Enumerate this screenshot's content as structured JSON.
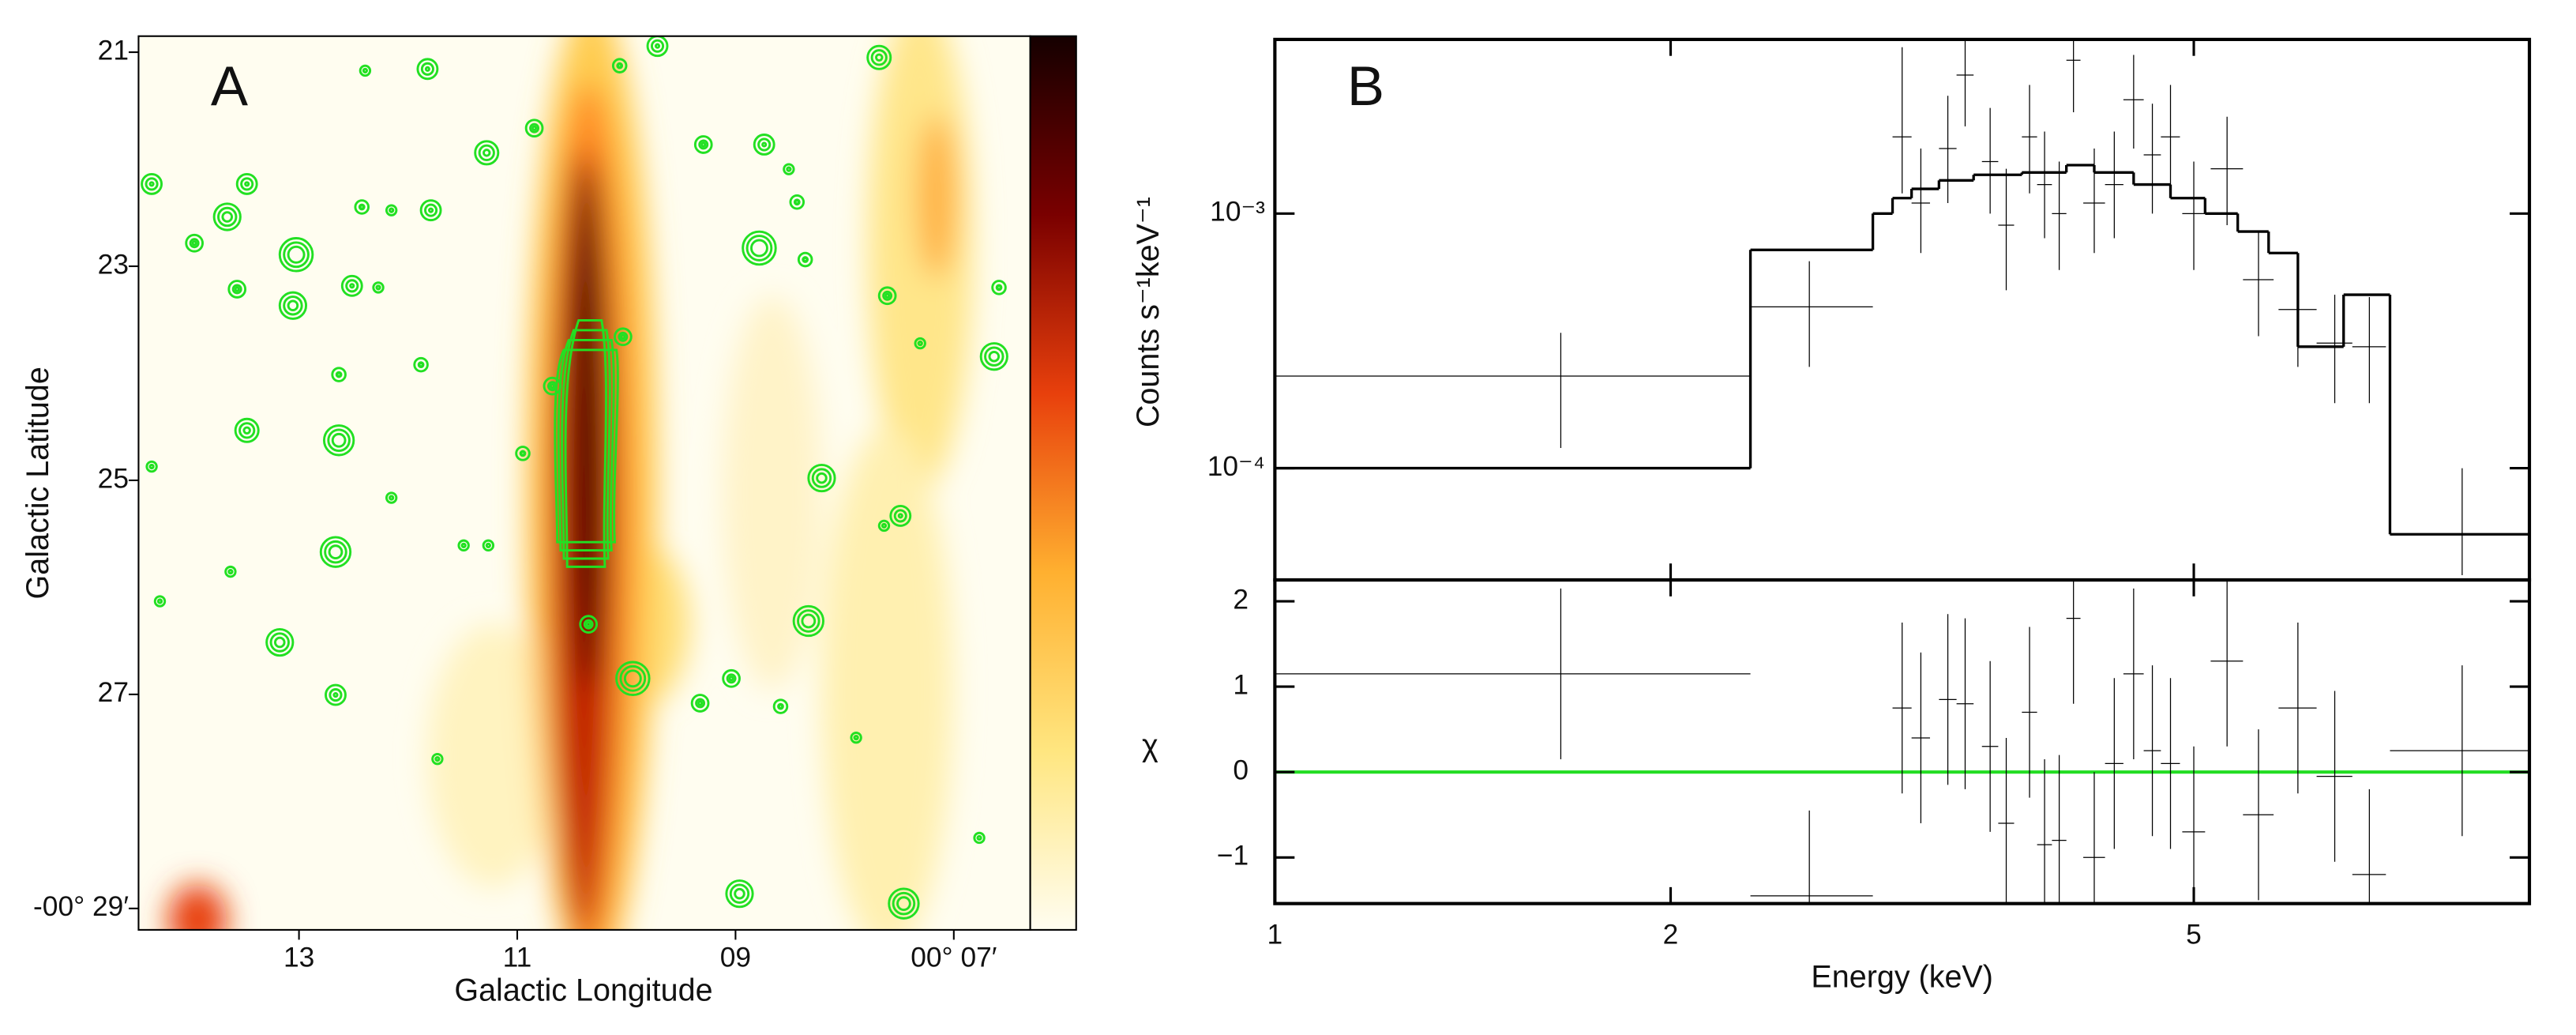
{
  "chart_data": [
    {
      "type": "image",
      "label": "A",
      "x_label": "Galactic Longitude",
      "y_label": "Galactic Latitude",
      "xlim": [
        14.47,
        6.3
      ],
      "xticks": [
        13,
        11,
        {
          "value": 9,
          "label": "09"
        },
        {
          "value": 7,
          "label": "00° 07′"
        }
      ],
      "ylim": [
        20.85,
        29.2
      ],
      "yticks": [
        21,
        23,
        25,
        27,
        {
          "value": 29,
          "label": "-00° 29′"
        }
      ],
      "colormap": [
        "#fffdf0",
        "#ffe680",
        "#ffb030",
        "#e8400c",
        "#7a0000",
        "#150000"
      ]
    },
    {
      "type": "spectrum",
      "label": "B",
      "y_label": "Counts s⁻¹keV⁻¹",
      "log_x": true,
      "log_y": true,
      "xlim": [
        1,
        9
      ],
      "ylim": [
        3.64e-05,
        0.00483
      ],
      "yticks": [
        {
          "value": 0.0001,
          "label": "10⁻⁴"
        },
        {
          "value": 0.001,
          "label": "10⁻³"
        }
      ],
      "x": [
        1.65,
        2.55,
        3.0,
        3.1,
        3.25,
        3.35,
        3.5,
        3.6,
        3.75,
        3.85,
        3.95,
        4.05,
        4.2,
        4.35,
        4.5,
        4.65,
        4.8,
        5.0,
        5.3,
        5.6,
        6.0,
        6.4,
        6.8,
        8.0
      ],
      "x_low": [
        1,
        2.3,
        2.95,
        3.05,
        3.2,
        3.3,
        3.45,
        3.55,
        3.7,
        3.8,
        3.9,
        4.0,
        4.12,
        4.28,
        4.42,
        4.58,
        4.72,
        4.9,
        5.15,
        5.45,
        5.8,
        6.2,
        6.6,
        7.05
      ],
      "x_high": [
        2.3,
        2.85,
        3.05,
        3.15,
        3.3,
        3.4,
        3.55,
        3.65,
        3.8,
        3.9,
        4.0,
        4.1,
        4.28,
        4.42,
        4.58,
        4.72,
        4.88,
        5.1,
        5.45,
        5.75,
        6.2,
        6.6,
        7.0,
        9.0
      ],
      "values": [
        0.00023,
        0.00043,
        0.002,
        0.0011,
        0.0018,
        0.0035,
        0.0016,
        0.0009,
        0.002,
        0.0013,
        0.001,
        0.004,
        0.0011,
        0.0013,
        0.0028,
        0.0017,
        0.002,
        0.001,
        0.0015,
        0.00055,
        0.00042,
        0.00031,
        0.0003,
        5.5e-05
      ],
      "y_low": [
        0.00012,
        0.00025,
        0.0012,
        0.0007,
        0.0011,
        0.0022,
        0.001,
        0.0005,
        0.0012,
        0.0008,
        0.0006,
        0.0025,
        0.0007,
        0.0008,
        0.0018,
        0.001,
        0.0012,
        0.0006,
        0.0009,
        0.00033,
        0.00025,
        0.00018,
        0.00018,
        3.8e-05
      ],
      "y_high": [
        0.00034,
        0.00065,
        0.0045,
        0.0018,
        0.0029,
        0.0048,
        0.0026,
        0.0015,
        0.0032,
        0.0021,
        0.0016,
        0.0048,
        0.0018,
        0.0021,
        0.0042,
        0.0027,
        0.0032,
        0.0016,
        0.0024,
        0.00085,
        0.00065,
        0.00048,
        0.00047,
        0.0001
      ],
      "model_edges": [
        1,
        2.3,
        2.85,
        2.95,
        3.05,
        3.2,
        3.4,
        3.7,
        4.0,
        4.2,
        4.5,
        4.8,
        5.1,
        5.4,
        5.7,
        6.0,
        6.5,
        7.05,
        9.0
      ],
      "model": [
        0.0001,
        0.00072,
        0.001,
        0.00115,
        0.00125,
        0.00135,
        0.00142,
        0.00145,
        0.00155,
        0.00145,
        0.0013,
        0.00115,
        0.001,
        0.00085,
        0.0007,
        0.0003,
        0.00048,
        5.5e-05
      ],
      "color": "#000000"
    },
    {
      "type": "residual",
      "x_label": "Energy (keV)",
      "y_label": "χ",
      "log_x": true,
      "xlim": [
        1,
        9
      ],
      "xticks": [
        1,
        2,
        5
      ],
      "ylim": [
        -1.54,
        2.25
      ],
      "yticks": [
        {
          "value": -1,
          "label": "−1"
        },
        0,
        1,
        2
      ],
      "values": [
        1.15,
        -1.45,
        0.75,
        0.4,
        0.85,
        0.8,
        0.3,
        -0.6,
        0.7,
        -0.85,
        -0.8,
        1.8,
        -1.0,
        0.1,
        1.15,
        0.25,
        0.1,
        -0.7,
        1.3,
        -0.5,
        0.75,
        -0.05,
        -1.2,
        0.25
      ],
      "errors": [
        1,
        1,
        1,
        1,
        1,
        1,
        1,
        1,
        1,
        1,
        1,
        1,
        1,
        1,
        1,
        1,
        1,
        1,
        1,
        1,
        1,
        1,
        1,
        1
      ],
      "zero_color": "#22dd22"
    }
  ]
}
